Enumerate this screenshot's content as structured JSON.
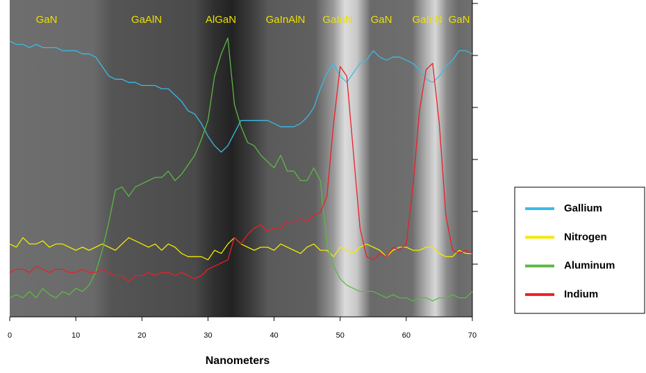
{
  "chart_data": {
    "type": "line",
    "x_label": "Nanometers",
    "region_labels": [
      "GaN",
      "GaAlN",
      "AlGaN",
      "GaInAlN",
      "GaInN",
      "GaN",
      "GaInN",
      "GaN"
    ],
    "x": [
      0,
      1,
      2,
      3,
      4,
      5,
      6,
      7,
      8,
      9,
      10,
      11,
      12,
      13,
      14,
      15,
      16,
      17,
      18,
      19,
      20,
      21,
      22,
      23,
      24,
      25,
      26,
      27,
      28,
      29,
      30,
      31,
      32,
      33,
      34,
      35,
      36,
      37,
      38,
      39,
      40,
      41,
      42,
      43,
      44,
      45,
      46,
      47,
      48,
      49,
      50,
      51,
      52,
      53,
      54,
      55,
      56,
      57,
      58,
      59,
      60,
      61,
      62,
      63,
      64,
      65,
      66,
      67,
      68,
      69,
      70
    ],
    "xlim": [
      0,
      70
    ],
    "xticks": [
      0,
      10,
      20,
      30,
      40,
      50,
      60,
      70
    ],
    "ylim": [
      0,
      100
    ],
    "series": [
      {
        "name": "Gallium",
        "color": "#3bbbe9",
        "values": [
          87,
          86,
          86,
          85,
          86,
          85,
          85,
          85,
          84,
          84,
          84,
          83,
          83,
          82,
          79,
          76,
          75,
          75,
          74,
          74,
          73,
          73,
          73,
          72,
          72,
          70,
          68,
          65,
          64,
          61,
          57,
          54,
          52,
          54,
          58,
          62,
          62,
          62,
          62,
          62,
          61,
          60,
          60,
          60,
          61,
          63,
          66,
          72,
          77,
          80,
          76,
          74,
          77,
          80,
          81,
          84,
          82,
          81,
          82,
          82,
          81,
          80,
          78,
          75,
          74,
          76,
          79,
          81,
          84,
          84,
          83
        ]
      },
      {
        "name": "Nitrogen",
        "color": "#f2ea00",
        "values": [
          23,
          22,
          25,
          23,
          23,
          24,
          22,
          23,
          23,
          22,
          21,
          22,
          21,
          22,
          23,
          22,
          21,
          23,
          25,
          24,
          23,
          22,
          23,
          21,
          23,
          22,
          20,
          19,
          19,
          19,
          18,
          21,
          20,
          23,
          25,
          23,
          22,
          21,
          22,
          22,
          21,
          23,
          22,
          21,
          20,
          22,
          23,
          21,
          21,
          19,
          22,
          21,
          20,
          22,
          23,
          22,
          21,
          19,
          21,
          22,
          22,
          21,
          21,
          22,
          22,
          20,
          19,
          19,
          21,
          20,
          20
        ]
      },
      {
        "name": "Aluminum",
        "color": "#5cb845",
        "values": [
          6,
          7,
          6,
          8,
          6,
          9,
          7,
          6,
          8,
          7,
          9,
          8,
          10,
          14,
          21,
          30,
          40,
          41,
          38,
          41,
          42,
          43,
          44,
          44,
          46,
          43,
          45,
          48,
          51,
          56,
          62,
          76,
          83,
          88,
          67,
          60,
          55,
          54,
          51,
          49,
          47,
          51,
          46,
          46,
          43,
          43,
          47,
          43,
          23,
          16,
          12,
          10,
          9,
          8,
          8,
          8,
          7,
          6,
          7,
          6,
          6,
          5,
          6,
          6,
          5,
          6,
          6,
          7,
          6,
          6,
          8
        ]
      },
      {
        "name": "Indium",
        "color": "#e8202a",
        "values": [
          14,
          15,
          15,
          14,
          16,
          15,
          14,
          15,
          15,
          14,
          14,
          15,
          14,
          14,
          15,
          14,
          13,
          13,
          11,
          13,
          13,
          14,
          13,
          14,
          14,
          13,
          14,
          13,
          12,
          13,
          15,
          16,
          17,
          18,
          25,
          23,
          26,
          28,
          29,
          27,
          28,
          28,
          30,
          30,
          31,
          30,
          32,
          33,
          38,
          61,
          79,
          76,
          52,
          28,
          19,
          18,
          20,
          19,
          22,
          21,
          23,
          41,
          65,
          78,
          80,
          61,
          32,
          21,
          20,
          21,
          20
        ]
      }
    ]
  }
}
